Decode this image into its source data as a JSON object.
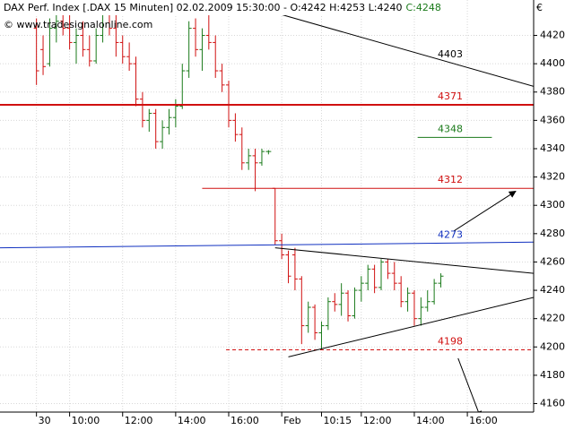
{
  "chart_data": {
    "type": "ohlc",
    "title": "DAX Perf. Index [.DAX 15 Minuten] 02.02.2009 15:30:00 - O:4242 H:4253 L:4240",
    "title_close": "C:4248",
    "source": "© www.tradesignalonline.com",
    "currency": "€",
    "up_color": "#1a7a1a",
    "down_color": "#d01010",
    "grid": true,
    "x": [
      0,
      1,
      2,
      3,
      4,
      5,
      6,
      7,
      8,
      9,
      10,
      11,
      12,
      13,
      14,
      15,
      16,
      17,
      18,
      19,
      20,
      21,
      22,
      23,
      24,
      25,
      26,
      27,
      28,
      29,
      30,
      31,
      32,
      33,
      34,
      35,
      36,
      37,
      38,
      39,
      40,
      41,
      42,
      43,
      44,
      45,
      46,
      47,
      48,
      49,
      50,
      51,
      52,
      53,
      54,
      55,
      56,
      57,
      58,
      59,
      60,
      61
    ],
    "open": [
      4425,
      4410,
      4400,
      4425,
      4430,
      4425,
      4415,
      4420,
      4410,
      4402,
      4420,
      4435,
      4425,
      4415,
      4405,
      4400,
      4375,
      4360,
      4365,
      4345,
      4355,
      4362,
      4370,
      4395,
      4425,
      4410,
      4420,
      4415,
      4395,
      4385,
      4360,
      4350,
      4330,
      4335,
      4330,
      4338,
      4312,
      4275,
      4265,
      4265,
      4248,
      4215,
      4228,
      4210,
      4215,
      4232,
      4230,
      4238,
      4222,
      4240,
      4245,
      4255,
      4242,
      4260,
      4252,
      4245,
      4232,
      4238,
      4220,
      4228,
      4232,
      4245
    ],
    "high": [
      4432,
      4420,
      4432,
      4440,
      4440,
      4435,
      4425,
      4430,
      4420,
      4425,
      4440,
      4442,
      4435,
      4420,
      4415,
      4405,
      4380,
      4368,
      4368,
      4360,
      4368,
      4375,
      4400,
      4430,
      4432,
      4425,
      4440,
      4420,
      4400,
      4388,
      4365,
      4355,
      4340,
      4340,
      4340,
      4339,
      4312,
      4280,
      4268,
      4270,
      4250,
      4232,
      4230,
      4218,
      4235,
      4238,
      4245,
      4240,
      4242,
      4250,
      4258,
      4258,
      4262,
      4262,
      4260,
      4250,
      4242,
      4240,
      4235,
      4240,
      4248,
      4252
    ],
    "low": [
      4385,
      4392,
      4398,
      4415,
      4420,
      4410,
      4400,
      4405,
      4398,
      4400,
      4415,
      4420,
      4405,
      4400,
      4395,
      4370,
      4355,
      4352,
      4340,
      4340,
      4350,
      4355,
      4368,
      4390,
      4405,
      4395,
      4410,
      4390,
      4380,
      4355,
      4345,
      4325,
      4325,
      4310,
      4328,
      4336,
      4272,
      4262,
      4245,
      4240,
      4202,
      4210,
      4205,
      4198,
      4212,
      4225,
      4222,
      4218,
      4220,
      4232,
      4240,
      4238,
      4240,
      4248,
      4240,
      4228,
      4225,
      4215,
      4215,
      4225,
      4230,
      4242
    ],
    "close": [
      4395,
      4398,
      4425,
      4430,
      4425,
      4415,
      4420,
      4410,
      4402,
      4420,
      4435,
      4425,
      4415,
      4405,
      4400,
      4375,
      4360,
      4365,
      4345,
      4355,
      4362,
      4370,
      4395,
      4425,
      4410,
      4420,
      4415,
      4395,
      4385,
      4360,
      4350,
      4330,
      4335,
      4330,
      4338,
      4338,
      4275,
      4265,
      4250,
      4248,
      4215,
      4228,
      4210,
      4215,
      4232,
      4230,
      4238,
      4222,
      4240,
      4245,
      4255,
      4242,
      4260,
      4252,
      4245,
      4232,
      4238,
      4220,
      4228,
      4232,
      4245,
      4250
    ],
    "xlim": [
      -5.5,
      75
    ],
    "ylim": [
      4154,
      4445
    ],
    "yticks": [
      4160,
      4180,
      4200,
      4220,
      4240,
      4260,
      4280,
      4300,
      4320,
      4340,
      4360,
      4380,
      4400,
      4420
    ],
    "xticks": [
      {
        "value": 0,
        "label": "30"
      },
      {
        "value": 5,
        "label": "10:00"
      },
      {
        "value": 13,
        "label": "12:00"
      },
      {
        "value": 21,
        "label": "14:00"
      },
      {
        "value": 29,
        "label": "16:00"
      },
      {
        "value": 37,
        "label": "Feb"
      },
      {
        "value": 43,
        "label": "10:15"
      },
      {
        "value": 49,
        "label": "12:00"
      },
      {
        "value": 57,
        "label": "14:00"
      },
      {
        "value": 65,
        "label": "16:00"
      }
    ],
    "lines": [
      {
        "label": "4403",
        "color": "#000000",
        "x": [
          36,
          75
        ],
        "y": [
          4436,
          4384
        ]
      },
      {
        "label": "4371",
        "color": "#d01010",
        "x": [
          -5.5,
          75
        ],
        "y": [
          4371,
          4371
        ],
        "width": 2
      },
      {
        "label": "4348",
        "color": "#1a7a1a",
        "x": [
          57.5,
          68.7
        ],
        "y": [
          4348,
          4348
        ]
      },
      {
        "label": "4312",
        "color": "#d01010",
        "x": [
          25,
          75
        ],
        "y": [
          4312,
          4312
        ]
      },
      {
        "label": "4273",
        "color": "#1030c0",
        "x": [
          -5.5,
          75
        ],
        "y": [
          4270,
          4274
        ]
      },
      {
        "label": "4198",
        "color": "#d01010",
        "x": [
          28.6,
          75
        ],
        "y": [
          4198,
          4198
        ],
        "dash": true
      },
      {
        "color": "#000000",
        "x": [
          36,
          75
        ],
        "y": [
          4270,
          4252
        ]
      },
      {
        "color": "#000000",
        "x": [
          38,
          75
        ],
        "y": [
          4193,
          4235
        ]
      }
    ],
    "arrows": [
      {
        "color": "#000000",
        "x": [
          63,
          72.3
        ],
        "y": [
          4282,
          4310
        ]
      },
      {
        "color": "#000000",
        "x": [
          63.6,
          67
        ],
        "y": [
          4192,
          4150
        ]
      }
    ]
  }
}
